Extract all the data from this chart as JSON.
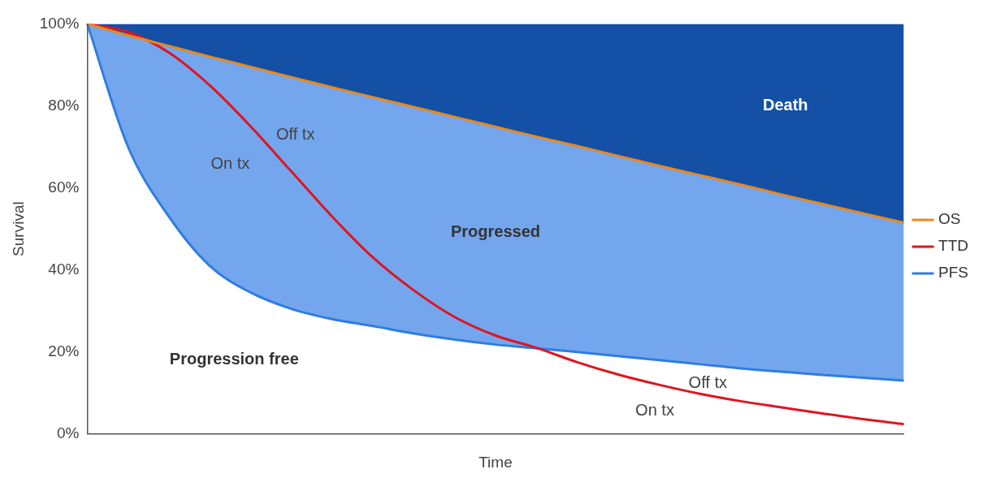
{
  "chart_data": {
    "type": "line",
    "xlabel": "Time",
    "ylabel": "Survival",
    "categories": [
      null,
      null,
      null,
      null,
      null,
      null,
      null,
      null,
      null,
      null,
      null,
      null,
      null,
      null,
      null,
      null,
      null,
      null,
      null,
      null,
      null
    ],
    "series": [
      {
        "name": "OS",
        "color": "#e8891c",
        "values": [
          100,
          97.2,
          94.6,
          92.0,
          89.5,
          87.0,
          84.5,
          82.1,
          79.7,
          77.3,
          74.9,
          72.5,
          70.2,
          67.8,
          65.4,
          63.1,
          60.8,
          58.4,
          56.1,
          53.8,
          51.5
        ]
      },
      {
        "name": "TTD",
        "color": "#e0141e",
        "values": [
          100,
          98,
          93,
          85,
          75,
          64,
          53,
          43,
          35,
          28.5,
          24,
          21,
          17.5,
          14.5,
          12,
          9.8,
          8,
          6.5,
          5,
          3.6,
          2.4
        ]
      },
      {
        "name": "PFS",
        "color": "#2f7de0",
        "values": [
          100,
          70,
          53,
          41,
          34.5,
          30.5,
          28,
          26.3,
          24.5,
          23,
          21.8,
          20.9,
          20,
          19,
          18,
          17,
          16,
          15.2,
          14.4,
          13.7,
          13
        ]
      }
    ],
    "annotations": [
      "Death",
      "Progressed",
      "Progression free",
      "Off tx",
      "On tx",
      "Off tx",
      "On tx"
    ],
    "ylim": [
      0,
      100
    ],
    "yticks": [
      {
        "value": 0,
        "label": "0%"
      },
      {
        "value": 20,
        "label": "20%"
      },
      {
        "value": 40,
        "label": "40%"
      },
      {
        "value": 60,
        "label": "60%"
      },
      {
        "value": 80,
        "label": "80%"
      },
      {
        "value": 100,
        "label": "100%"
      }
    ],
    "grid": false,
    "legend": "right",
    "marker": "none",
    "line_style": "solid"
  }
}
